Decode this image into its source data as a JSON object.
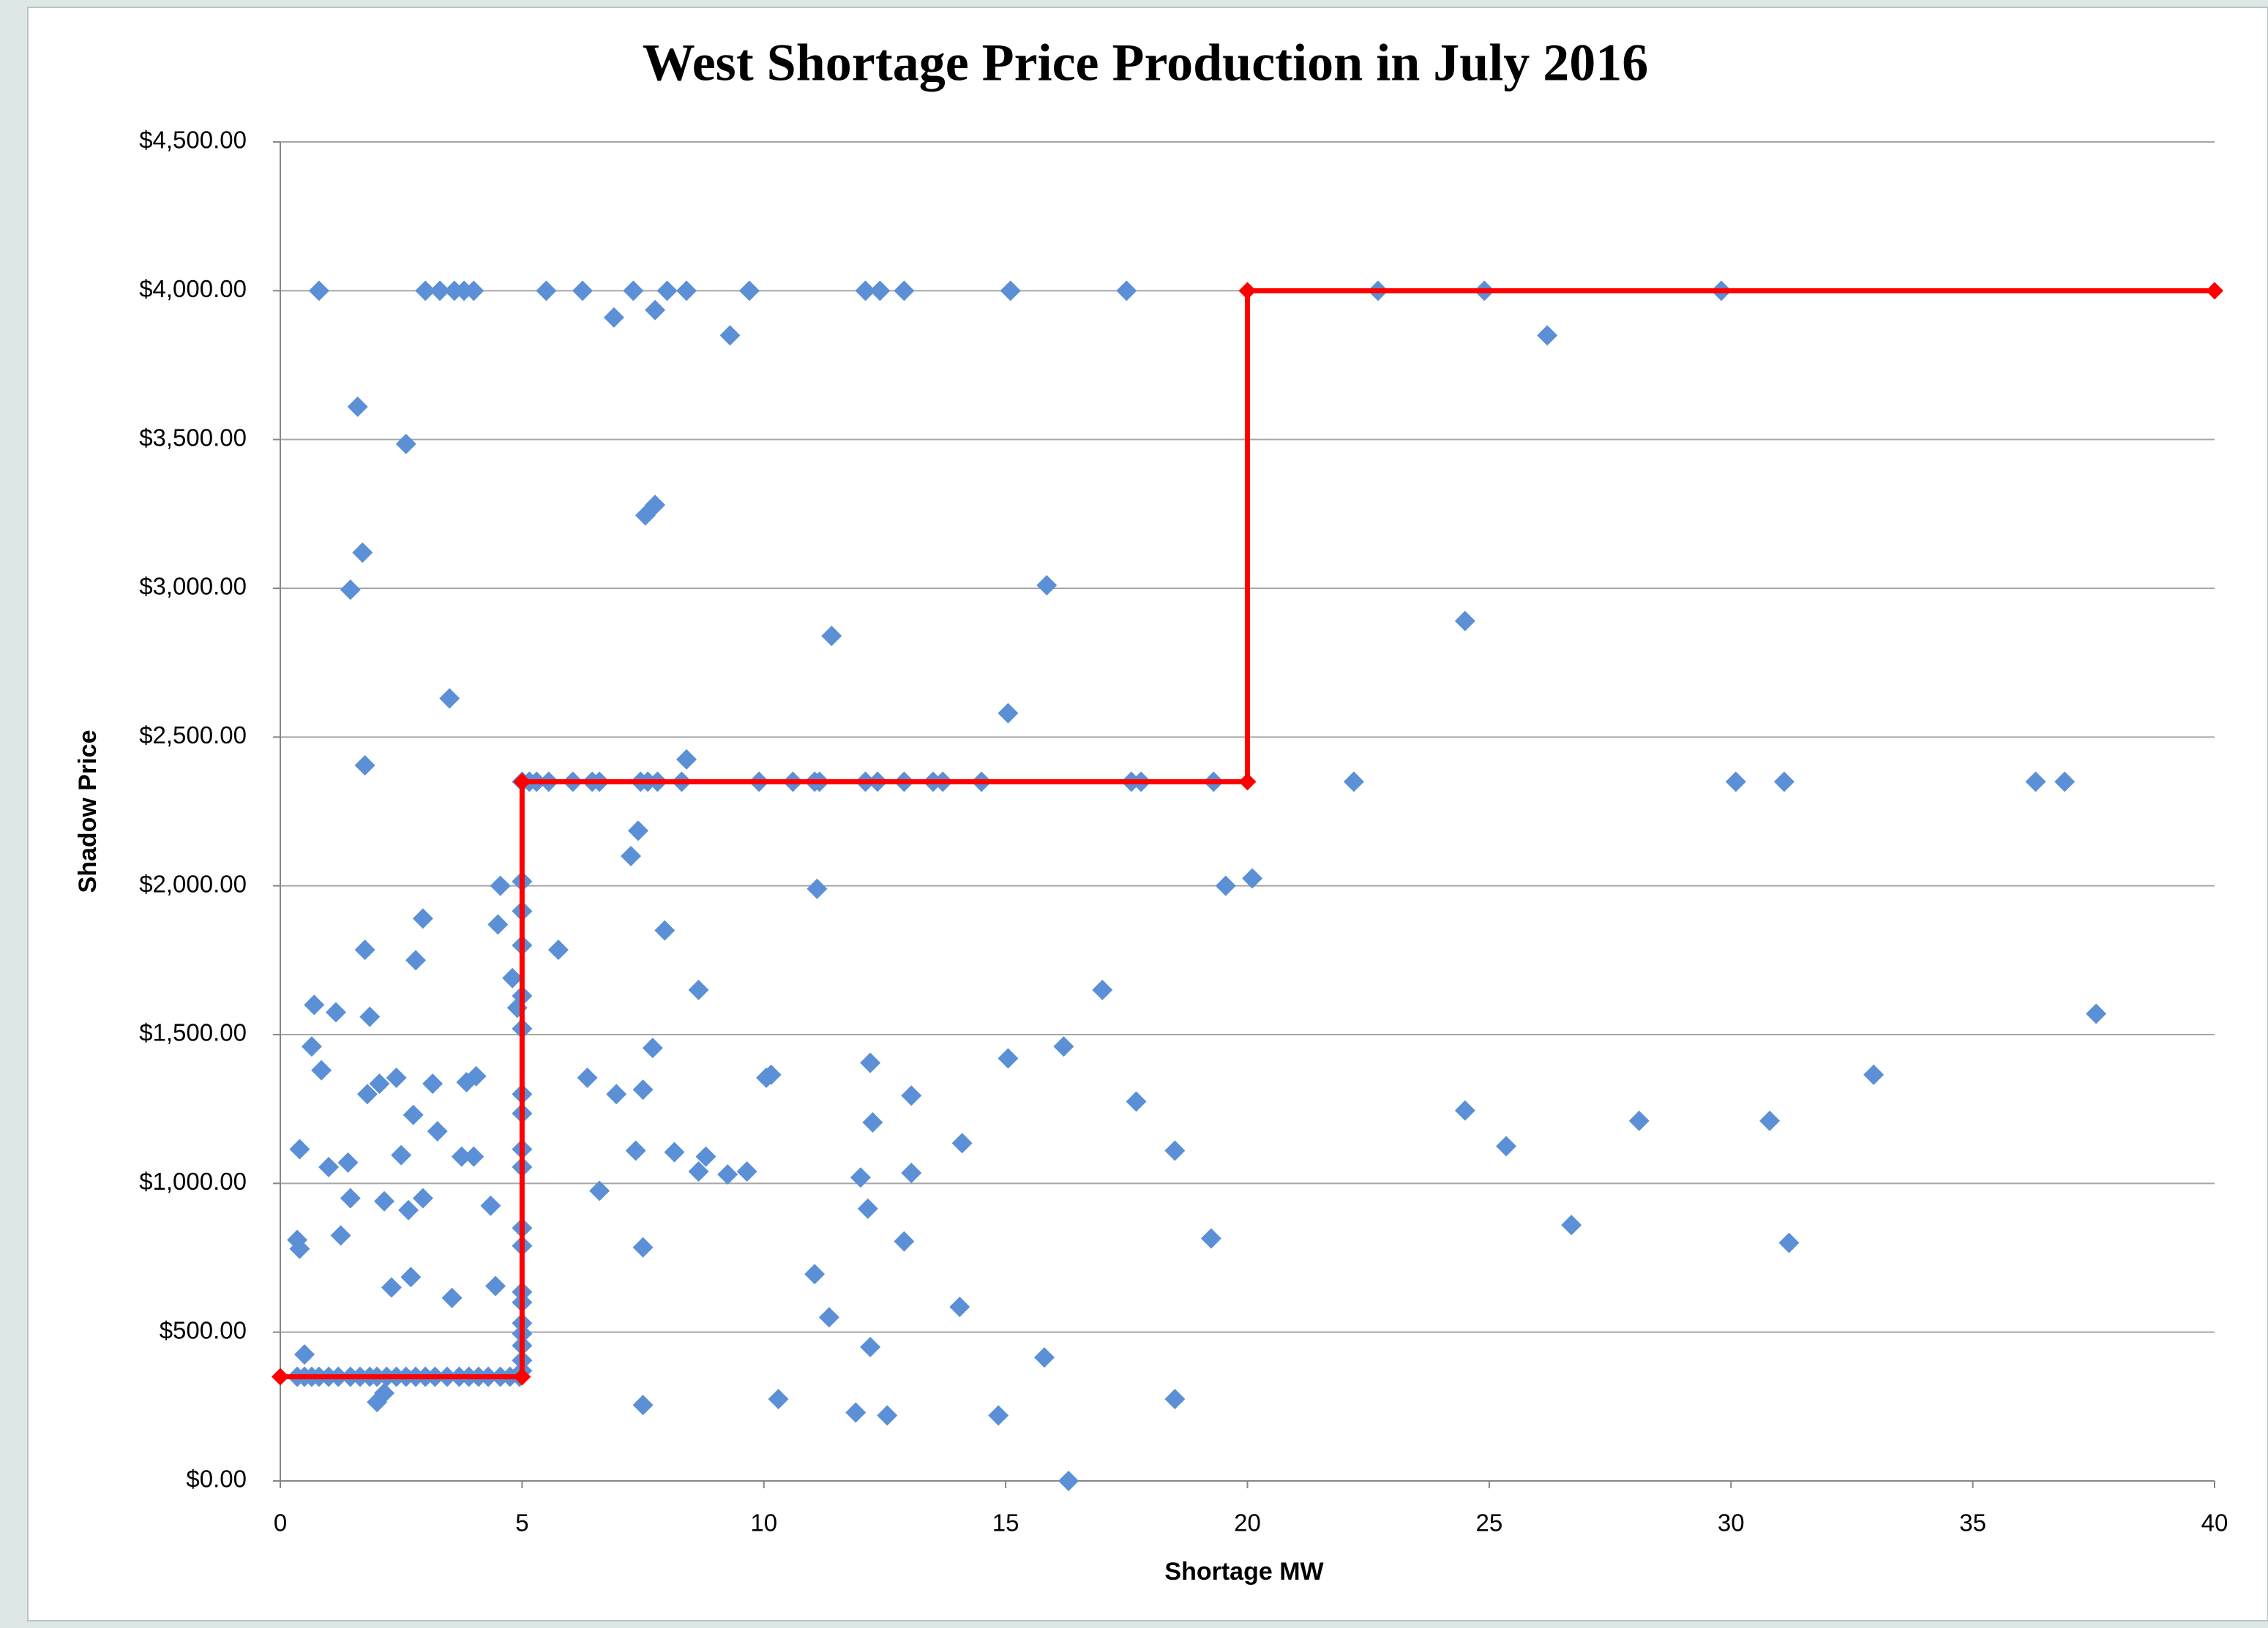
{
  "chart_data": {
    "type": "scatter",
    "title": "West Shortage Price Production in July 2016",
    "x_label": "Shortage MW",
    "y_label": "Shadow Price",
    "xlim": [
      0,
      40
    ],
    "xticks": [
      0,
      5,
      10,
      15,
      20,
      25,
      30,
      35,
      40
    ],
    "ylim": [
      0,
      4500
    ],
    "yticks": [
      {
        "value": 0,
        "label": "$0.00"
      },
      {
        "value": 500,
        "label": "$500.00"
      },
      {
        "value": 1000,
        "label": "$1,000.00"
      },
      {
        "value": 1500,
        "label": "$1,500.00"
      },
      {
        "value": 2000,
        "label": "$2,000.00"
      },
      {
        "value": 2500,
        "label": "$2,500.00"
      },
      {
        "value": 3000,
        "label": "$3,000.00"
      },
      {
        "value": 3500,
        "label": "$3,500.00"
      },
      {
        "value": 4000,
        "label": "$4,000.00"
      },
      {
        "value": 4500,
        "label": "$4,500.00"
      }
    ],
    "grid": true,
    "series": [
      {
        "type": "scatter",
        "color": "#5b8fd6",
        "x": [
          0.8,
          3.0,
          3.3,
          3.6,
          3.8,
          4.0,
          5.5,
          6.25,
          7.3,
          8.0,
          8.4,
          9.7,
          12.1,
          12.4,
          12.9,
          15.1,
          17.5,
          22.7,
          24.9,
          29.8,
          6.9,
          7.75,
          9.3,
          26.2,
          1.6,
          2.6,
          1.7,
          1.45,
          7.55,
          7.75,
          15.85,
          11.4,
          24.5,
          3.5,
          15.05,
          1.75,
          8.4,
          5.0,
          5.15,
          5.3,
          5.55,
          6.05,
          6.45,
          6.6,
          7.45,
          7.6,
          7.8,
          8.3,
          9.9,
          10.6,
          11.05,
          11.15,
          12.1,
          12.35,
          12.9,
          13.5,
          13.7,
          14.5,
          17.6,
          17.8,
          19.3,
          22.2,
          30.1,
          31.1,
          36.3,
          36.9,
          7.4,
          7.25,
          4.55,
          11.1,
          19.55,
          20.1,
          5.0,
          5.0,
          2.95,
          4.5,
          7.95,
          1.75,
          5.75,
          5.0,
          2.8,
          4.8,
          0.7,
          1.15,
          1.85,
          4.9,
          5.0,
          5.0,
          8.65,
          17.0,
          37.55,
          0.65,
          7.7,
          16.2,
          0.85,
          12.2,
          15.05,
          32.95,
          2.4,
          2.05,
          3.15,
          3.85,
          4.05,
          6.35,
          10.05,
          10.15,
          1.8,
          6.95,
          7.5,
          5.0,
          13.05,
          17.7,
          2.75,
          5.0,
          12.25,
          24.5,
          28.1,
          30.8,
          3.25,
          0.4,
          2.5,
          3.75,
          4.0,
          5.0,
          7.35,
          8.15,
          8.8,
          14.1,
          18.5,
          25.35,
          1.0,
          1.4,
          5.0,
          8.65,
          9.25,
          9.65,
          12.0,
          13.05,
          1.45,
          2.15,
          2.65,
          2.95,
          4.35,
          6.6,
          12.15,
          5.0,
          0.35,
          0.4,
          1.25,
          5.0,
          7.5,
          12.9,
          19.25,
          26.7,
          31.2,
          2.7,
          2.3,
          4.45,
          5.0,
          11.05,
          3.55,
          5.0,
          5.0,
          5.0,
          14.05,
          11.35,
          5.0,
          12.2,
          0.5,
          5.0,
          15.8,
          5.0,
          0.35,
          0.5,
          0.65,
          0.8,
          1.0,
          1.2,
          1.45,
          1.65,
          1.85,
          2.0,
          2.2,
          2.4,
          2.6,
          2.8,
          3.0,
          3.2,
          3.45,
          3.7,
          3.9,
          4.1,
          4.3,
          4.55,
          4.75,
          4.95,
          2.0,
          2.15,
          7.5,
          10.3,
          11.9,
          12.55,
          14.85,
          18.5,
          16.3
        ],
        "values": [
          4000,
          4000,
          4000,
          4000,
          4000,
          4000,
          4000,
          4000,
          4000,
          4000,
          4000,
          4000,
          4000,
          4000,
          4000,
          4000,
          4000,
          4000,
          4000,
          4000,
          3910,
          3935,
          3850,
          3850,
          3610,
          3485,
          3120,
          2995,
          3245,
          3280,
          3010,
          2840,
          2890,
          2630,
          2580,
          2405,
          2425,
          2350,
          2350,
          2350,
          2350,
          2350,
          2350,
          2350,
          2350,
          2350,
          2350,
          2350,
          2350,
          2350,
          2350,
          2350,
          2350,
          2350,
          2350,
          2350,
          2350,
          2350,
          2350,
          2350,
          2350,
          2350,
          2350,
          2350,
          2350,
          2350,
          2185,
          2100,
          2000,
          1990,
          2000,
          2025,
          2015,
          1915,
          1890,
          1870,
          1850,
          1785,
          1785,
          1800,
          1750,
          1690,
          1600,
          1575,
          1560,
          1590,
          1630,
          1520,
          1650,
          1650,
          1570,
          1460,
          1455,
          1460,
          1380,
          1405,
          1420,
          1365,
          1355,
          1335,
          1335,
          1340,
          1360,
          1355,
          1355,
          1365,
          1300,
          1300,
          1315,
          1300,
          1295,
          1275,
          1230,
          1235,
          1205,
          1245,
          1210,
          1210,
          1175,
          1115,
          1095,
          1090,
          1090,
          1115,
          1110,
          1105,
          1090,
          1135,
          1110,
          1125,
          1055,
          1070,
          1055,
          1040,
          1030,
          1040,
          1020,
          1035,
          950,
          940,
          910,
          950,
          925,
          975,
          915,
          850,
          810,
          780,
          825,
          790,
          785,
          805,
          815,
          860,
          800,
          685,
          650,
          655,
          635,
          695,
          615,
          600,
          530,
          495,
          585,
          550,
          455,
          450,
          425,
          405,
          415,
          370,
          350,
          350,
          350,
          350,
          350,
          350,
          350,
          350,
          350,
          350,
          350,
          350,
          350,
          350,
          350,
          350,
          350,
          350,
          350,
          350,
          350,
          350,
          350,
          350,
          265,
          295,
          255,
          275,
          230,
          220,
          220,
          275,
          0
        ]
      },
      {
        "type": "line",
        "color": "#ff0000",
        "x": [
          0,
          5,
          5,
          20,
          20,
          40
        ],
        "values": [
          350,
          350,
          2350,
          2350,
          4000,
          4000
        ]
      }
    ]
  }
}
